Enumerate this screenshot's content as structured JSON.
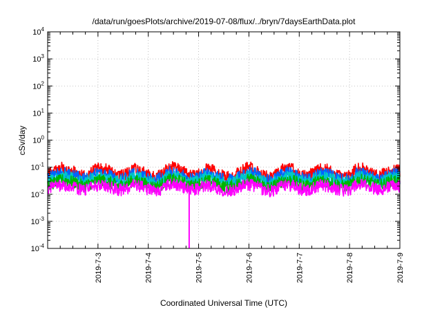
{
  "chart_data": {
    "type": "line",
    "title": "/data/run/goesPlots/archive/2019-07-08/flux/../bryn/7daysEarthData.plot",
    "xlabel": "Coordinated Universal Time (UTC)",
    "ylabel": "cSv/day",
    "yscale": "log",
    "ylim": [
      0.0001,
      10000
    ],
    "xlim": [
      "2019-07-02",
      "2019-07-09"
    ],
    "grid": true,
    "legend": "none",
    "x_ticks": [
      "2019-7-3",
      "2019-7-4",
      "2019-7-5",
      "2019-7-6",
      "2019-7-7",
      "2019-7-8",
      "2019-7-9"
    ],
    "y_ticks": [
      {
        "base": "10",
        "exp": "-4"
      },
      {
        "base": "10",
        "exp": "-3"
      },
      {
        "base": "10",
        "exp": "-2"
      },
      {
        "base": "10",
        "exp": "-1"
      },
      {
        "base": "10",
        "exp": "0"
      },
      {
        "base": "10",
        "exp": "1"
      },
      {
        "base": "10",
        "exp": "2"
      },
      {
        "base": "10",
        "exp": "3"
      },
      {
        "base": "10",
        "exp": "4"
      }
    ],
    "series": [
      {
        "color": "#ff0000",
        "values": [
          0.055,
          0.07,
          0.095,
          0.08,
          0.06,
          0.045,
          0.06,
          0.09,
          0.085,
          0.06,
          0.045,
          0.055,
          0.085,
          0.07,
          0.05,
          0.042,
          0.055,
          0.1,
          0.09,
          0.065,
          0.045,
          0.055,
          0.08,
          0.075,
          0.05,
          0.042,
          0.05,
          0.07,
          0.1,
          0.08,
          0.05,
          0.04,
          0.055,
          0.095,
          0.085,
          0.055,
          0.045,
          0.06,
          0.09,
          0.08,
          0.055,
          0.045,
          0.05,
          0.085,
          0.09,
          0.065,
          0.05,
          0.06,
          0.085,
          0.075
        ]
      },
      {
        "color": "#0066ff",
        "values": [
          0.04,
          0.05,
          0.06,
          0.055,
          0.045,
          0.035,
          0.045,
          0.06,
          0.058,
          0.045,
          0.035,
          0.042,
          0.058,
          0.05,
          0.038,
          0.032,
          0.042,
          0.065,
          0.06,
          0.048,
          0.035,
          0.042,
          0.056,
          0.052,
          0.038,
          0.032,
          0.038,
          0.05,
          0.065,
          0.055,
          0.038,
          0.031,
          0.042,
          0.062,
          0.058,
          0.042,
          0.035,
          0.045,
          0.06,
          0.055,
          0.042,
          0.035,
          0.038,
          0.058,
          0.06,
          0.048,
          0.038,
          0.045,
          0.058,
          0.052
        ]
      },
      {
        "color": "#00c8c8",
        "values": [
          0.03,
          0.037,
          0.045,
          0.042,
          0.034,
          0.027,
          0.034,
          0.045,
          0.043,
          0.034,
          0.027,
          0.032,
          0.043,
          0.038,
          0.029,
          0.025,
          0.032,
          0.048,
          0.045,
          0.036,
          0.027,
          0.032,
          0.042,
          0.039,
          0.029,
          0.025,
          0.029,
          0.038,
          0.048,
          0.041,
          0.029,
          0.024,
          0.032,
          0.046,
          0.043,
          0.032,
          0.027,
          0.034,
          0.045,
          0.041,
          0.032,
          0.027,
          0.029,
          0.043,
          0.045,
          0.036,
          0.029,
          0.034,
          0.043,
          0.039
        ]
      },
      {
        "color": "#00b400",
        "values": [
          0.022,
          0.027,
          0.033,
          0.031,
          0.025,
          0.02,
          0.025,
          0.033,
          0.032,
          0.025,
          0.02,
          0.024,
          0.032,
          0.028,
          0.021,
          0.018,
          0.024,
          0.035,
          0.033,
          0.026,
          0.02,
          0.024,
          0.031,
          0.029,
          0.021,
          0.018,
          0.021,
          0.028,
          0.035,
          0.03,
          0.021,
          0.018,
          0.024,
          0.034,
          0.032,
          0.024,
          0.02,
          0.025,
          0.033,
          0.03,
          0.024,
          0.02,
          0.021,
          0.032,
          0.033,
          0.026,
          0.021,
          0.025,
          0.032,
          0.029
        ]
      },
      {
        "color": "#ff00ff",
        "values": [
          0.016,
          0.019,
          0.022,
          0.021,
          0.017,
          0.014,
          0.017,
          0.022,
          0.021,
          0.017,
          0.014,
          0.016,
          0.021,
          0.019,
          0.015,
          0.013,
          0.016,
          0.023,
          0.022,
          0.018,
          0.014,
          0.016,
          0.021,
          0.02,
          0.015,
          0.013,
          0.015,
          0.019,
          0.023,
          0.02,
          0.015,
          0.013,
          0.016,
          0.022,
          0.021,
          0.016,
          0.014,
          0.017,
          0.022,
          0.02,
          0.016,
          0.014,
          0.015,
          0.021,
          0.022,
          0.018,
          0.015,
          0.017,
          0.021,
          0.02
        ]
      }
    ],
    "dropout": {
      "x": "2019-07-04T19:30",
      "y_min": 0.0001,
      "color": "#ff00ff"
    }
  }
}
